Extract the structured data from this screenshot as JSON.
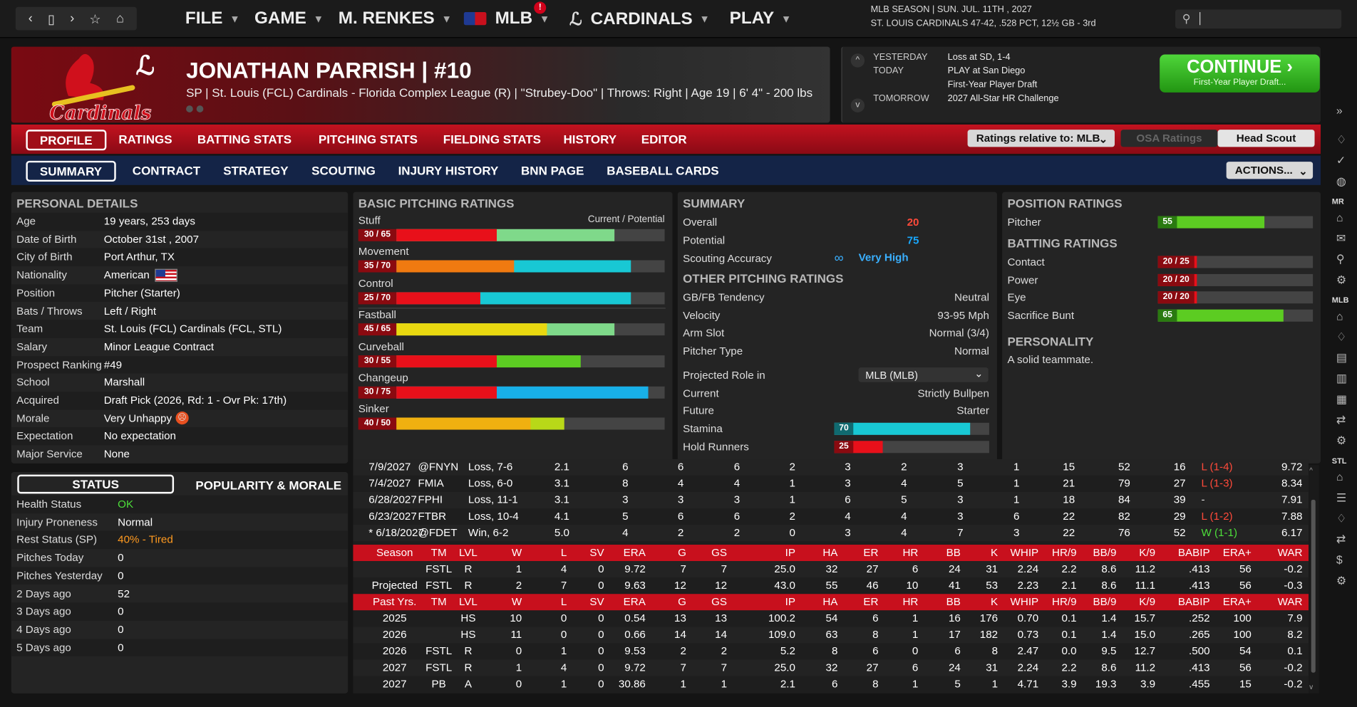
{
  "topbar": {
    "menus": [
      "FILE",
      "GAME",
      "M. RENKES",
      "MLB",
      "CARDINALS",
      "PLAY"
    ],
    "notification_badge": "!",
    "season_line1": "MLB SEASON  |  SUN. JUL. 11TH , 2027",
    "season_line2": "ST. LOUIS CARDINALS  47-42, .528 PCT, 12½ GB - 3rd",
    "search_placeholder": ""
  },
  "player": {
    "name": "JONATHAN PARRISH  |  #10",
    "desc": "SP | St. Louis (FCL) Cardinals - Florida Complex League (R)  |  \"Strubey-Doo\" | Throws: Right  |  Age 19  |  6' 4\" - 200 lbs"
  },
  "schedule": {
    "yesterday_label": "YESTERDAY",
    "yesterday": "Loss at SD, 1-4",
    "today_label": "TODAY",
    "today": "PLAY at San Diego",
    "today2": "First-Year Player Draft",
    "tomorrow_label": "TOMORROW",
    "tomorrow": "2027 All-Star HR Challenge",
    "continue_label": "CONTINUE",
    "continue_sub": "First-Year Player Draft..."
  },
  "tabs_main": [
    "PROFILE",
    "RATINGS",
    "BATTING STATS",
    "PITCHING STATS",
    "FIELDING STATS",
    "HISTORY",
    "EDITOR"
  ],
  "ratings_relative": "Ratings relative to: MLB",
  "osa_ratings": "OSA Ratings",
  "head_scout": "Head Scout",
  "tabs_sub": [
    "SUMMARY",
    "CONTRACT",
    "STRATEGY",
    "SCOUTING",
    "INJURY HISTORY",
    "BNN PAGE",
    "BASEBALL CARDS"
  ],
  "actions_label": "ACTIONS...",
  "personal": {
    "title": "PERSONAL DETAILS",
    "rows": [
      [
        "Age",
        "19 years, 253 days"
      ],
      [
        "Date of Birth",
        "October 31st , 2007"
      ],
      [
        "City of Birth",
        "Port Arthur, TX"
      ],
      [
        "Nationality",
        "American"
      ],
      [
        "Position",
        "Pitcher (Starter)"
      ],
      [
        "Bats / Throws",
        "Left / Right"
      ],
      [
        "Team",
        "St. Louis (FCL) Cardinals (FCL, STL)"
      ],
      [
        "Salary",
        "Minor League Contract"
      ],
      [
        "Prospect Ranking",
        "#49"
      ],
      [
        "School",
        "Marshall"
      ],
      [
        "Acquired",
        "Draft Pick (2026, Rd: 1 - Ovr Pk: 17th)"
      ],
      [
        "Morale",
        "Very Unhappy"
      ],
      [
        "Expectation",
        "No expectation"
      ],
      [
        "Major Service",
        "None"
      ]
    ]
  },
  "status": {
    "tab_status": "STATUS",
    "tab_pop": "POPULARITY & MORALE",
    "rows": [
      [
        "Health Status",
        "OK"
      ],
      [
        "Injury Proneness",
        "Normal"
      ],
      [
        "Rest Status (SP)",
        "40% - Tired"
      ],
      [
        "Pitches Today",
        "0"
      ],
      [
        "Pitches Yesterday",
        "0"
      ],
      [
        "2 Days ago",
        "52"
      ],
      [
        "3 Days ago",
        "0"
      ],
      [
        "4 Days ago",
        "0"
      ],
      [
        "5 Days ago",
        "0"
      ]
    ]
  },
  "pitching": {
    "title": "BASIC PITCHING RATINGS",
    "cur_pot": "Current / Potential",
    "items": [
      {
        "name": "Stuff",
        "label": "30 / 65",
        "current": 30,
        "potential": 65,
        "ccolor": "#e8101a",
        "pcolor": "#7fd98a"
      },
      {
        "name": "Movement",
        "label": "35 / 70",
        "current": 35,
        "potential": 70,
        "ccolor": "#f07a10",
        "pcolor": "#18c8d4"
      },
      {
        "name": "Control",
        "label": "25 / 70",
        "current": 25,
        "potential": 70,
        "ccolor": "#e8101a",
        "pcolor": "#18c8d4"
      },
      {
        "name": "Fastball",
        "label": "45 / 65",
        "current": 45,
        "potential": 65,
        "ccolor": "#e8d810",
        "pcolor": "#7fd98a"
      },
      {
        "name": "Curveball",
        "label": "30 / 55",
        "current": 30,
        "potential": 55,
        "ccolor": "#e8101a",
        "pcolor": "#5ccc22"
      },
      {
        "name": "Changeup",
        "label": "30 / 75",
        "current": 30,
        "potential": 75,
        "ccolor": "#e8101a",
        "pcolor": "#18b0e8"
      },
      {
        "name": "Sinker",
        "label": "40 / 50",
        "current": 40,
        "potential": 50,
        "ccolor": "#f0b010",
        "pcolor": "#b8d818"
      }
    ]
  },
  "summary": {
    "title": "SUMMARY",
    "overall_label": "Overall",
    "overall": "20",
    "potential_label": "Potential",
    "potential": "75",
    "scouting_label": "Scouting Accuracy",
    "scouting": "Very High",
    "other_title": "OTHER PITCHING RATINGS",
    "other": [
      [
        "GB/FB Tendency",
        "Neutral"
      ],
      [
        "Velocity",
        "93-95 Mph"
      ],
      [
        "Arm Slot",
        "Normal (3/4)"
      ],
      [
        "Pitcher Type",
        "Normal"
      ]
    ],
    "proj_label": "Projected Role in",
    "proj_select": "MLB (MLB)",
    "current_label": "Current",
    "current": "Strictly Bullpen",
    "future_label": "Future",
    "future": "Starter",
    "stamina_label": "Stamina",
    "stamina": 70,
    "hold_label": "Hold Runners",
    "hold": 25
  },
  "position": {
    "title": "POSITION RATINGS",
    "pitcher_label": "Pitcher",
    "pitcher": 55,
    "batting_title": "BATTING RATINGS",
    "batting": [
      [
        "Contact",
        "20 / 25",
        20,
        25
      ],
      [
        "Power",
        "20 / 20",
        20,
        20
      ],
      [
        "Eye",
        "20 / 20",
        20,
        20
      ],
      [
        "Sacrifice Bunt",
        "65",
        65,
        65
      ]
    ],
    "personality_title": "PERSONALITY",
    "personality": "A solid teammate."
  },
  "stats": {
    "games": [
      [
        "7/9/2027",
        "@FNYN",
        "Loss, 7-6",
        "2.1",
        "6",
        "6",
        "6",
        "2",
        "3",
        "2",
        "3",
        "1",
        "15",
        "52",
        "16",
        "L (1-4)",
        "9.72"
      ],
      [
        "7/4/2027",
        "FMIA",
        "Loss, 6-0",
        "3.1",
        "8",
        "4",
        "4",
        "1",
        "3",
        "4",
        "5",
        "1",
        "21",
        "79",
        "27",
        "L (1-3)",
        "8.34"
      ],
      [
        "6/28/2027",
        "FPHI",
        "Loss, 11-1",
        "3.1",
        "3",
        "3",
        "3",
        "1",
        "6",
        "5",
        "3",
        "1",
        "18",
        "84",
        "39",
        "-",
        "7.91"
      ],
      [
        "6/23/2027",
        "FTBR",
        "Loss, 10-4",
        "4.1",
        "5",
        "6",
        "6",
        "2",
        "4",
        "4",
        "3",
        "6",
        "22",
        "82",
        "29",
        "L (1-2)",
        "7.88"
      ],
      [
        "* 6/18/2027",
        "@FDET",
        "Win, 6-2",
        "5.0",
        "4",
        "2",
        "2",
        "0",
        "3",
        "4",
        "7",
        "3",
        "22",
        "76",
        "52",
        "W (1-1)",
        "6.17"
      ]
    ],
    "season_header": [
      "Season",
      "TM",
      "LVL",
      "W",
      "L",
      "SV",
      "ERA",
      "G",
      "GS",
      "IP",
      "HA",
      "ER",
      "HR",
      "BB",
      "K",
      "WHIP",
      "HR/9",
      "BB/9",
      "K/9",
      "BABIP",
      "ERA+",
      "WAR"
    ],
    "season_rows": [
      [
        "",
        "FSTL",
        "R",
        "1",
        "4",
        "0",
        "9.72",
        "7",
        "7",
        "25.0",
        "32",
        "27",
        "6",
        "24",
        "31",
        "2.24",
        "2.2",
        "8.6",
        "11.2",
        ".413",
        "56",
        "-0.2"
      ],
      [
        "Projected",
        "FSTL",
        "R",
        "2",
        "7",
        "0",
        "9.63",
        "12",
        "12",
        "43.0",
        "55",
        "46",
        "10",
        "41",
        "53",
        "2.23",
        "2.1",
        "8.6",
        "11.1",
        ".413",
        "56",
        "-0.3"
      ]
    ],
    "past_header": [
      "Past Yrs.",
      "TM",
      "LVL",
      "W",
      "L",
      "SV",
      "ERA",
      "G",
      "GS",
      "IP",
      "HA",
      "ER",
      "HR",
      "BB",
      "K",
      "WHIP",
      "HR/9",
      "BB/9",
      "K/9",
      "BABIP",
      "ERA+",
      "WAR"
    ],
    "past_rows": [
      [
        "2025",
        "",
        "HS",
        "10",
        "0",
        "0",
        "0.54",
        "13",
        "13",
        "100.2",
        "54",
        "6",
        "1",
        "16",
        "176",
        "0.70",
        "0.1",
        "1.4",
        "15.7",
        ".252",
        "100",
        "7.9"
      ],
      [
        "2026",
        "",
        "HS",
        "11",
        "0",
        "0",
        "0.66",
        "14",
        "14",
        "109.0",
        "63",
        "8",
        "1",
        "17",
        "182",
        "0.73",
        "0.1",
        "1.4",
        "15.0",
        ".265",
        "100",
        "8.2"
      ],
      [
        "2026",
        "FSTL",
        "R",
        "0",
        "1",
        "0",
        "9.53",
        "2",
        "2",
        "5.2",
        "8",
        "6",
        "0",
        "6",
        "8",
        "2.47",
        "0.0",
        "9.5",
        "12.7",
        ".500",
        "54",
        "0.1"
      ],
      [
        "2027",
        "FSTL",
        "R",
        "1",
        "4",
        "0",
        "9.72",
        "7",
        "7",
        "25.0",
        "32",
        "27",
        "6",
        "24",
        "31",
        "2.24",
        "2.2",
        "8.6",
        "11.2",
        ".413",
        "56",
        "-0.2"
      ],
      [
        "2027",
        "PB",
        "A",
        "0",
        "1",
        "0",
        "30.86",
        "1",
        "1",
        "2.1",
        "6",
        "8",
        "1",
        "5",
        "1",
        "4.71",
        "3.9",
        "19.3",
        "3.9",
        ".455",
        "15",
        "-0.2"
      ]
    ]
  },
  "sidebar_labels": [
    "MR",
    "MLB",
    "STL"
  ]
}
